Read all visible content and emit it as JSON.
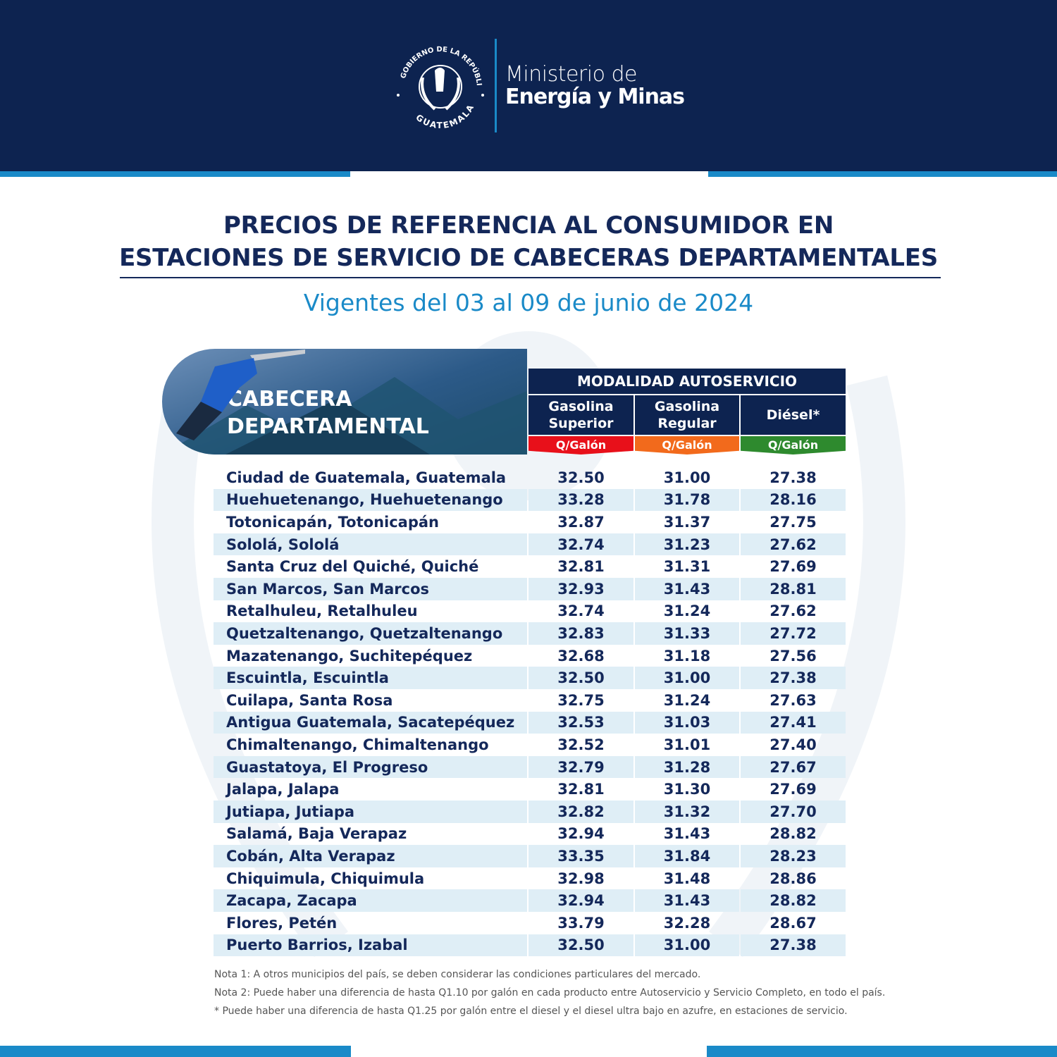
{
  "header": {
    "seal_text": "GOBIERNO DE LA REPÚBLICA · GUATEMALA",
    "ministry_line1": "Ministerio de",
    "ministry_line2": "Energía y Minas"
  },
  "title_line1": "PRECIOS DE REFERENCIA AL CONSUMIDOR EN",
  "title_line2": "ESTACIONES DE SERVICIO DE CABECERAS DEPARTAMENTALES",
  "subtitle": "Vigentes del 03 al 09 de junio de 2024",
  "table": {
    "row_header_line1": "CABECERA",
    "row_header_line2": "DEPARTAMENTAL",
    "group_header": "MODALIDAD AUTOSERVICIO",
    "columns": [
      {
        "line1": "Gasolina",
        "line2": "Superior",
        "unit": "Q/Galón",
        "color": "#e8101a"
      },
      {
        "line1": "Gasolina",
        "line2": "Regular",
        "unit": "Q/Galón",
        "color": "#f26a1c"
      },
      {
        "line1": "Diésel*",
        "line2": "",
        "unit": "Q/Galón",
        "color": "#2e8a2e"
      }
    ],
    "rows": [
      {
        "name": "Ciudad de Guatemala, Guatemala",
        "v": [
          "32.50",
          "31.00",
          "27.38"
        ]
      },
      {
        "name": "Huehuetenango, Huehuetenango",
        "v": [
          "33.28",
          "31.78",
          "28.16"
        ]
      },
      {
        "name": "Totonicapán, Totonicapán",
        "v": [
          "32.87",
          "31.37",
          "27.75"
        ]
      },
      {
        "name": "Sololá, Sololá",
        "v": [
          "32.74",
          "31.23",
          "27.62"
        ]
      },
      {
        "name": "Santa Cruz del Quiché, Quiché",
        "v": [
          "32.81",
          "31.31",
          "27.69"
        ]
      },
      {
        "name": "San Marcos, San Marcos",
        "v": [
          "32.93",
          "31.43",
          "28.81"
        ]
      },
      {
        "name": "Retalhuleu, Retalhuleu",
        "v": [
          "32.74",
          "31.24",
          "27.62"
        ]
      },
      {
        "name": "Quetzaltenango, Quetzaltenango",
        "v": [
          "32.83",
          "31.33",
          "27.72"
        ]
      },
      {
        "name": "Mazatenango, Suchitepéquez",
        "v": [
          "32.68",
          "31.18",
          "27.56"
        ]
      },
      {
        "name": "Escuintla, Escuintla",
        "v": [
          "32.50",
          "31.00",
          "27.38"
        ]
      },
      {
        "name": "Cuilapa, Santa Rosa",
        "v": [
          "32.75",
          "31.24",
          "27.63"
        ]
      },
      {
        "name": "Antigua Guatemala, Sacatepéquez",
        "v": [
          "32.53",
          "31.03",
          "27.41"
        ]
      },
      {
        "name": "Chimaltenango, Chimaltenango",
        "v": [
          "32.52",
          "31.01",
          "27.40"
        ]
      },
      {
        "name": "Guastatoya, El Progreso",
        "v": [
          "32.79",
          "31.28",
          "27.67"
        ]
      },
      {
        "name": "Jalapa, Jalapa",
        "v": [
          "32.81",
          "31.30",
          "27.69"
        ]
      },
      {
        "name": "Jutiapa, Jutiapa",
        "v": [
          "32.82",
          "31.32",
          "27.70"
        ]
      },
      {
        "name": "Salamá, Baja Verapaz",
        "v": [
          "32.94",
          "31.43",
          "28.82"
        ]
      },
      {
        "name": "Cobán, Alta Verapaz",
        "v": [
          "33.35",
          "31.84",
          "28.23"
        ]
      },
      {
        "name": "Chiquimula, Chiquimula",
        "v": [
          "32.98",
          "31.48",
          "28.86"
        ]
      },
      {
        "name": "Zacapa, Zacapa",
        "v": [
          "32.94",
          "31.43",
          "28.82"
        ]
      },
      {
        "name": "Flores, Petén",
        "v": [
          "33.79",
          "32.28",
          "28.67"
        ]
      },
      {
        "name": "Puerto Barrios, Izabal",
        "v": [
          "32.50",
          "31.00",
          "27.38"
        ]
      }
    ]
  },
  "notes": [
    "Nota 1: A otros municipios del país, se deben considerar las condiciones particulares del mercado.",
    "Nota 2: Puede haber una diferencia de hasta Q1.10 por galón en cada producto entre Autoservicio y Servicio Completo, en todo el país.",
    "* Puede haber una diferencia de hasta Q1.25 por galón entre el diesel y el diesel ultra bajo en azufre, en estaciones de servicio."
  ],
  "colors": {
    "navy": "#0d2350",
    "accent": "#1a8ac8",
    "row_alt": "#dfeef6"
  }
}
